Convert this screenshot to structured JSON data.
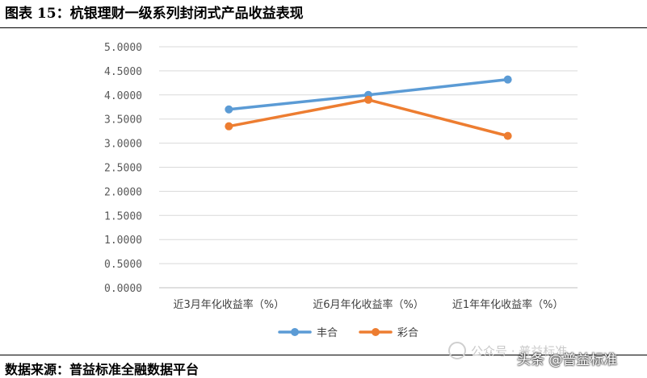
{
  "figure": {
    "title": "图表 15：杭银理财一级系列封闭式产品收益表现",
    "source": "数据来源：普益标准全融数据平台",
    "watermark": "公众号 · 普益标准",
    "credit": "头条 @普益标准"
  },
  "chart_data": {
    "type": "line",
    "title": "",
    "xlabel": "",
    "ylabel": "",
    "categories": [
      "近3月年化收益率（%）",
      "近6月年化收益率（%）",
      "近1年年化收益率（%）"
    ],
    "series": [
      {
        "name": "丰合",
        "color": "#5b9bd5",
        "values": [
          3.7,
          4.0,
          4.32
        ]
      },
      {
        "name": "彩合",
        "color": "#ed7d31",
        "values": [
          3.35,
          3.9,
          3.15
        ]
      }
    ],
    "ylim": [
      0,
      5
    ],
    "yticks": [
      "0.0000",
      "0.5000",
      "1.0000",
      "1.5000",
      "2.0000",
      "2.5000",
      "3.0000",
      "3.5000",
      "4.0000",
      "4.5000",
      "5.0000"
    ],
    "grid": true,
    "legend_position": "bottom"
  }
}
